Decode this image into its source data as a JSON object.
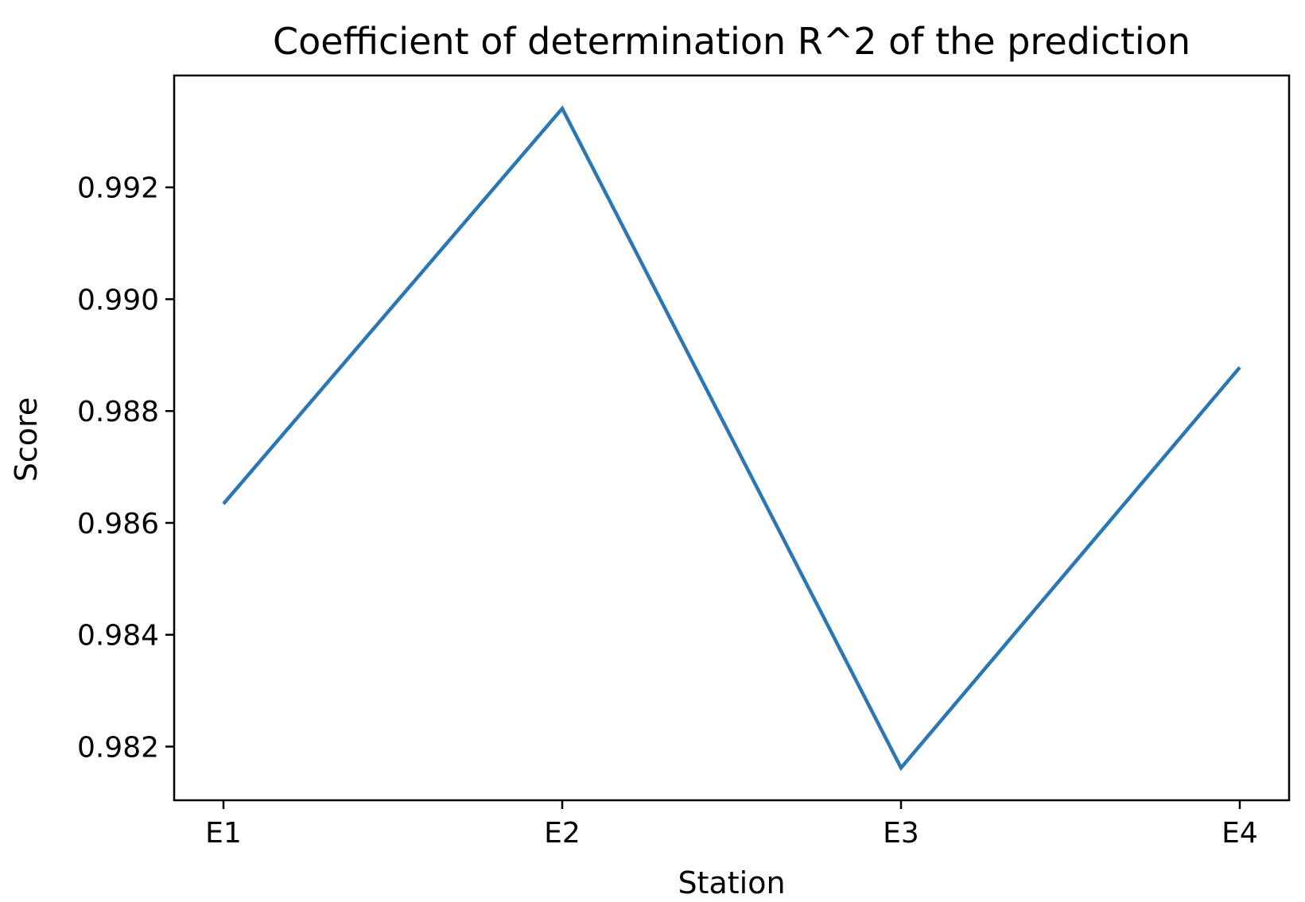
{
  "chart_data": {
    "type": "line",
    "title": "Coefficient of determination R^2 of the prediction",
    "xlabel": "Station",
    "ylabel": "Score",
    "categories": [
      "E1",
      "E2",
      "E3",
      "E4"
    ],
    "series": [
      {
        "values": [
          0.98634,
          0.99341,
          0.98162,
          0.98878
        ],
        "color": "#2a77b3"
      }
    ],
    "ylim": [
      0.98104,
      0.994
    ],
    "yticks": [
      0.982,
      0.984,
      0.986,
      0.988,
      0.99,
      0.992
    ],
    "ytick_labels": [
      "0.982",
      "0.984",
      "0.986",
      "0.988",
      "0.990",
      "0.992"
    ],
    "grid": false,
    "legend": "none"
  }
}
